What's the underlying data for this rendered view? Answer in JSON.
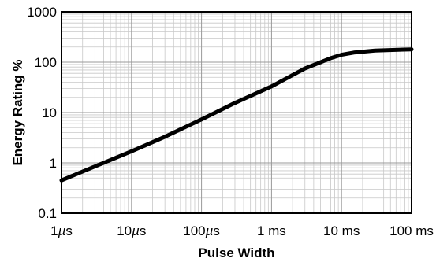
{
  "chart_data": {
    "type": "line",
    "title": "",
    "xlabel": "Pulse Width",
    "ylabel": "Energy Rating %",
    "x_scale": "log",
    "y_scale": "log",
    "xlim": [
      "1µs",
      "100 ms"
    ],
    "ylim": [
      0.1,
      1000
    ],
    "x_ticks": [
      {
        "value": "1µs",
        "label_num": "1",
        "label_unit": "µs"
      },
      {
        "value": "10µs",
        "label_num": "10",
        "label_unit": "µs"
      },
      {
        "value": "100µs",
        "label_num": "100",
        "label_unit": "µs"
      },
      {
        "value": "1 ms",
        "label_num": "1 ms",
        "label_unit": ""
      },
      {
        "value": "10 ms",
        "label_num": "10 ms",
        "label_unit": ""
      },
      {
        "value": "100 ms",
        "label_num": "100 ms",
        "label_unit": ""
      }
    ],
    "y_ticks": [
      {
        "value": 0.1,
        "label": "0.1"
      },
      {
        "value": 1,
        "label": "1"
      },
      {
        "value": 10,
        "label": "10"
      },
      {
        "value": 100,
        "label": "100"
      },
      {
        "value": 1000,
        "label": "1000"
      }
    ],
    "grid": true,
    "line_color": "#000000",
    "series": [
      {
        "x": [
          "1µs",
          "3µs",
          "10µs",
          "30µs",
          "100µs",
          "300µs",
          "1 ms",
          "3 ms",
          "7 ms",
          "10 ms",
          "15 ms",
          "30 ms",
          "100 ms"
        ],
        "x_seconds": [
          1e-06,
          3e-06,
          1e-05,
          3e-05,
          0.0001,
          0.0003,
          0.001,
          0.003,
          0.007,
          0.01,
          0.015,
          0.03,
          0.1
        ],
        "y": [
          0.45,
          0.85,
          1.7,
          3.3,
          7.3,
          15.5,
          33,
          75,
          120,
          140,
          155,
          170,
          180
        ]
      }
    ]
  }
}
